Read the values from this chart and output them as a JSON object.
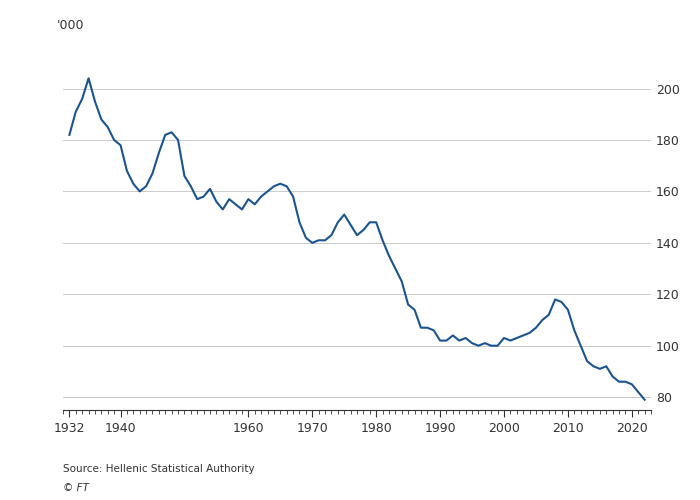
{
  "title": "",
  "ylabel": "'000",
  "source": "Source: Hellenic Statistical Authority",
  "copyright": "© FT",
  "line_color": "#1a5490",
  "background_color": "#ffffff",
  "grid_color": "#cccccc",
  "text_color": "#333333",
  "ylim": [
    75,
    215
  ],
  "yticks": [
    80,
    100,
    120,
    140,
    160,
    180,
    200
  ],
  "xlim": [
    1931,
    2023
  ],
  "xticks": [
    1932,
    1940,
    1960,
    1970,
    1980,
    1990,
    2000,
    2010,
    2020
  ],
  "data": {
    "1932": 182,
    "1933": 191,
    "1934": 196,
    "1935": 204,
    "1936": 195,
    "1937": 188,
    "1938": 185,
    "1939": 180,
    "1940": 178,
    "1941": 168,
    "1942": 163,
    "1943": 160,
    "1944": 162,
    "1945": 167,
    "1946": 175,
    "1947": 182,
    "1948": 183,
    "1949": 180,
    "1950": 166,
    "1951": 162,
    "1952": 157,
    "1953": 158,
    "1954": 161,
    "1955": 156,
    "1956": 153,
    "1957": 157,
    "1958": 155,
    "1959": 153,
    "1960": 157,
    "1961": 155,
    "1962": 158,
    "1963": 160,
    "1964": 162,
    "1965": 163,
    "1966": 162,
    "1967": 158,
    "1968": 148,
    "1969": 142,
    "1970": 140,
    "1971": 141,
    "1972": 141,
    "1973": 143,
    "1974": 148,
    "1975": 151,
    "1976": 147,
    "1977": 143,
    "1978": 145,
    "1979": 148,
    "1980": 148,
    "1981": 141,
    "1982": 135,
    "1983": 130,
    "1984": 125,
    "1985": 116,
    "1986": 114,
    "1987": 107,
    "1988": 107,
    "1989": 106,
    "1990": 102,
    "1991": 102,
    "1992": 104,
    "1993": 102,
    "1994": 103,
    "1995": 101,
    "1996": 100,
    "1997": 101,
    "1998": 100,
    "1999": 100,
    "2000": 103,
    "2001": 102,
    "2002": 103,
    "2003": 104,
    "2004": 105,
    "2005": 107,
    "2006": 110,
    "2007": 112,
    "2008": 118,
    "2009": 117,
    "2010": 114,
    "2011": 106,
    "2012": 100,
    "2013": 94,
    "2014": 92,
    "2015": 91,
    "2016": 92,
    "2017": 88,
    "2018": 86,
    "2019": 86,
    "2020": 85,
    "2021": 82,
    "2022": 79
  }
}
